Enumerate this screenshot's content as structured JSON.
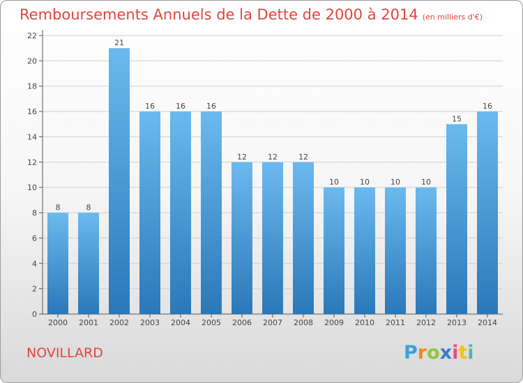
{
  "header": {
    "title": "Remboursements Annuels de la Dette de 2000 à 2014",
    "unit": "(en milliers d'€)"
  },
  "footer": {
    "commune": "NOVILLARD",
    "logo_text": "Proxiti"
  },
  "colors": {
    "bar_top": "#6cb9ef",
    "bar_bottom": "#2a78b8",
    "title": "#e0453f",
    "grid": "#d0d0d0"
  },
  "chart_data": {
    "type": "bar",
    "title": "Remboursements Annuels de la Dette de 2000 à 2014",
    "subtitle": "(en milliers d'€)",
    "xlabel": "",
    "ylabel": "",
    "categories": [
      "2000",
      "2001",
      "2002",
      "2003",
      "2004",
      "2005",
      "2006",
      "2007",
      "2008",
      "2009",
      "2010",
      "2011",
      "2012",
      "2013",
      "2014"
    ],
    "values": [
      8,
      8,
      21,
      16,
      16,
      16,
      12,
      12,
      12,
      10,
      10,
      10,
      10,
      15,
      16
    ],
    "ylim": [
      0,
      22
    ],
    "yticks": [
      0,
      2,
      4,
      6,
      8,
      10,
      12,
      14,
      16,
      18,
      20,
      22
    ],
    "grid": true,
    "data_labels": true
  }
}
